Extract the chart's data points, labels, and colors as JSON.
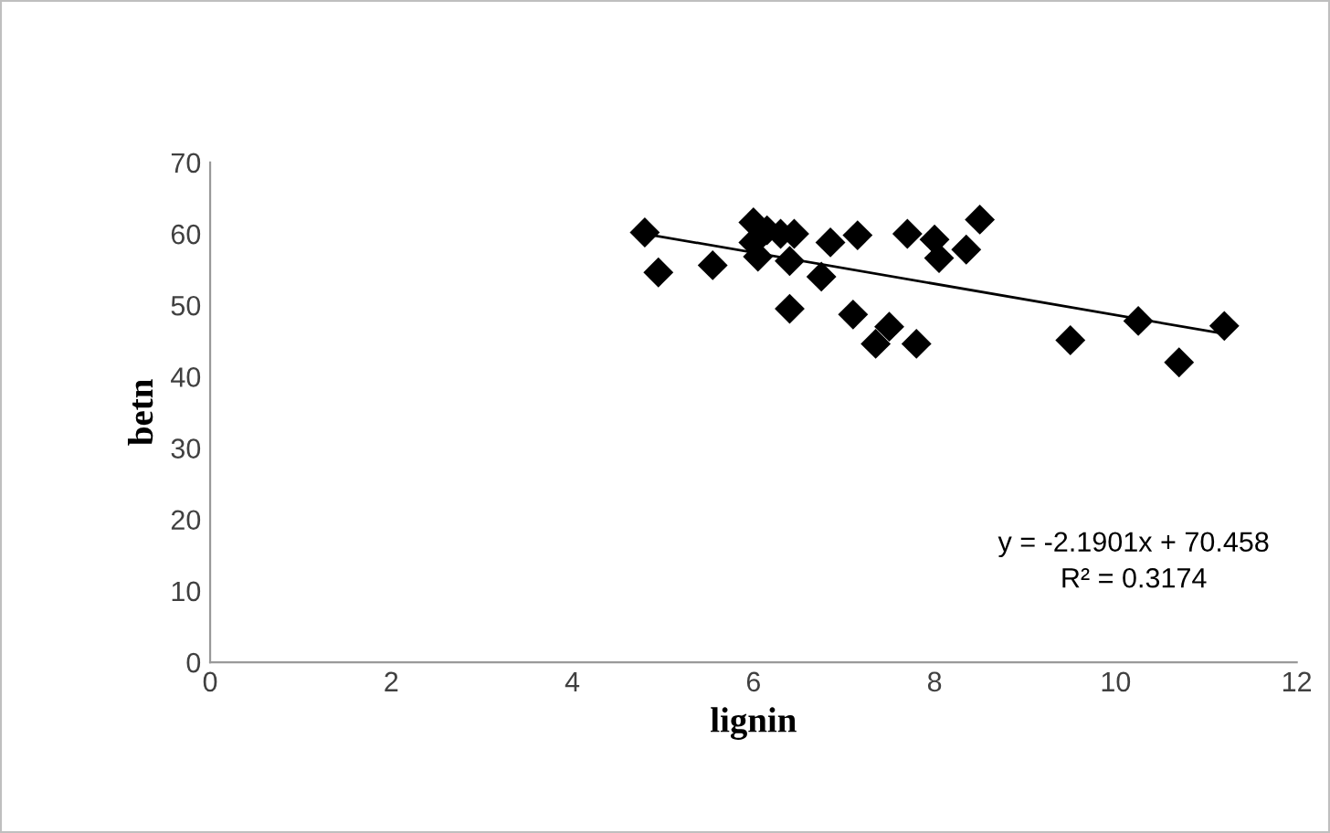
{
  "chart_data": {
    "type": "scatter",
    "xlabel": "lignin",
    "ylabel": "betn",
    "xlim": [
      0,
      12
    ],
    "ylim": [
      0,
      70
    ],
    "xticks": [
      0,
      2,
      4,
      6,
      8,
      10,
      12
    ],
    "yticks": [
      0,
      10,
      20,
      30,
      40,
      50,
      60,
      70
    ],
    "grid": false,
    "legend": false,
    "series": [
      {
        "marker": "diamond",
        "color": "#000000",
        "x": [
          4.8,
          4.95,
          5.55,
          6.0,
          6.0,
          6.05,
          6.15,
          6.3,
          6.4,
          6.4,
          6.45,
          6.75,
          6.85,
          7.1,
          7.15,
          7.35,
          7.5,
          7.7,
          7.8,
          8.0,
          8.05,
          8.35,
          8.5,
          9.5,
          10.25,
          10.7,
          11.2
        ],
        "values": [
          60.2,
          54.6,
          55.6,
          61.6,
          58.8,
          56.8,
          60.5,
          60.0,
          56.2,
          49.5,
          60.0,
          54.0,
          58.8,
          48.7,
          59.8,
          44.6,
          47.0,
          60.0,
          44.6,
          59.2,
          56.6,
          57.8,
          62.0,
          45.1,
          47.8,
          42.0,
          47.1
        ]
      },
      {
        "type": "line",
        "marker": "none",
        "color": "#000000",
        "x": [
          4.8,
          11.2
        ],
        "values": [
          60,
          46
        ]
      }
    ],
    "annotations": [
      "y = -2.1901x + 70.458\nR² = 0.3174"
    ]
  }
}
